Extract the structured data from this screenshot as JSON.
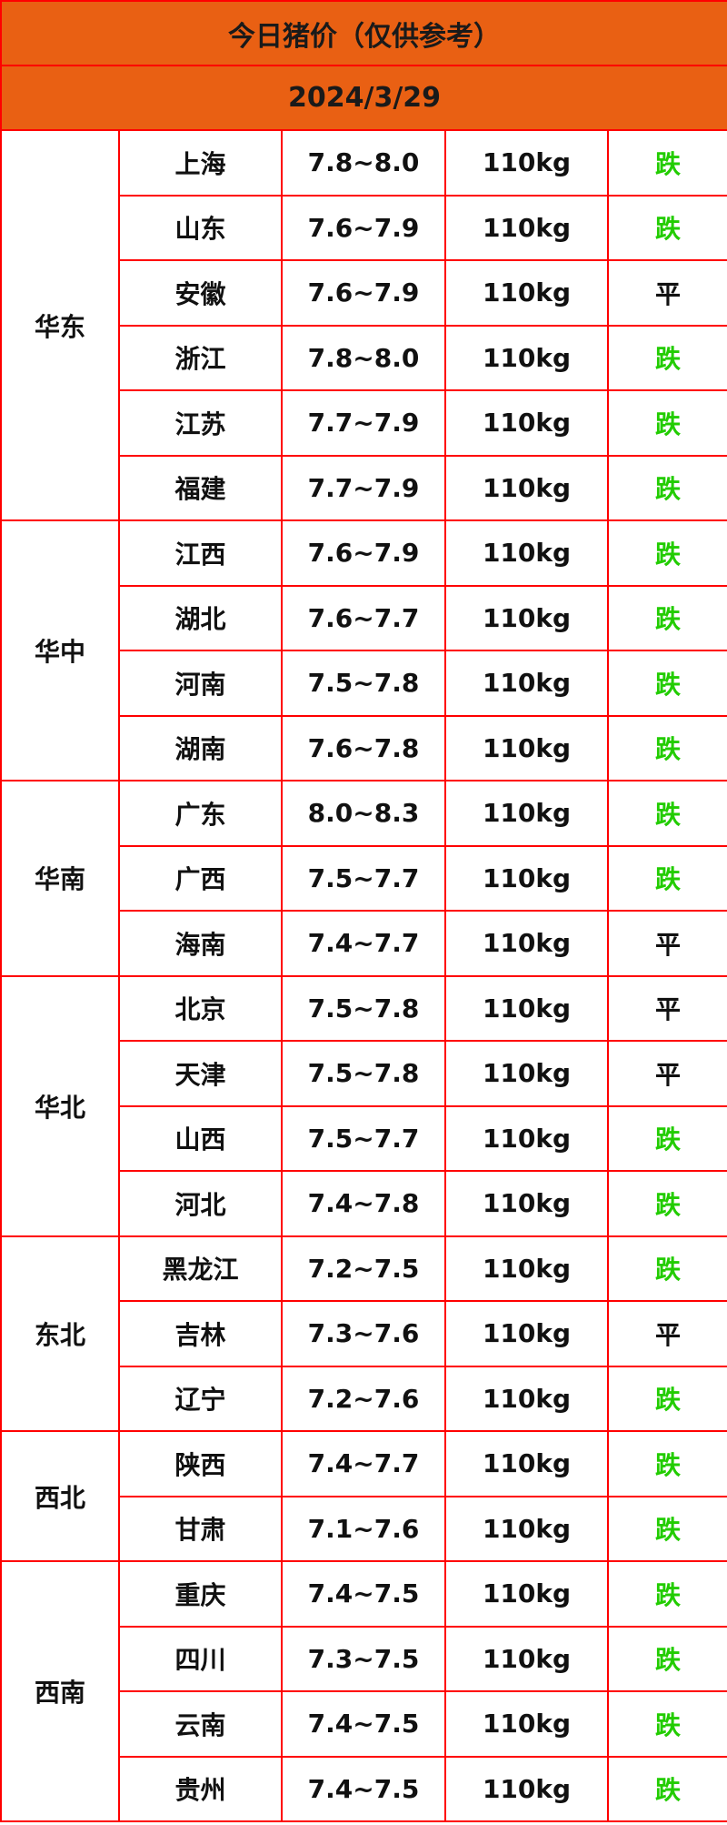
{
  "title": "今日猪价（仅供参考）",
  "date": "2024/3/29",
  "colors": {
    "header_bg": "#e96013",
    "border": "#ff0000",
    "down": "#22cc00",
    "flat": "#111111"
  },
  "regions": [
    {
      "name": "华东",
      "rows": [
        {
          "province": "上海",
          "price": "7.8~8.0",
          "weight": "110kg",
          "trend": "跌"
        },
        {
          "province": "山东",
          "price": "7.6~7.9",
          "weight": "110kg",
          "trend": "跌"
        },
        {
          "province": "安徽",
          "price": "7.6~7.9",
          "weight": "110kg",
          "trend": "平"
        },
        {
          "province": "浙江",
          "price": "7.8~8.0",
          "weight": "110kg",
          "trend": "跌"
        },
        {
          "province": "江苏",
          "price": "7.7~7.9",
          "weight": "110kg",
          "trend": "跌"
        },
        {
          "province": "福建",
          "price": "7.7~7.9",
          "weight": "110kg",
          "trend": "跌"
        }
      ]
    },
    {
      "name": "华中",
      "rows": [
        {
          "province": "江西",
          "price": "7.6~7.9",
          "weight": "110kg",
          "trend": "跌"
        },
        {
          "province": "湖北",
          "price": "7.6~7.7",
          "weight": "110kg",
          "trend": "跌"
        },
        {
          "province": "河南",
          "price": "7.5~7.8",
          "weight": "110kg",
          "trend": "跌"
        },
        {
          "province": "湖南",
          "price": "7.6~7.8",
          "weight": "110kg",
          "trend": "跌"
        }
      ]
    },
    {
      "name": "华南",
      "rows": [
        {
          "province": "广东",
          "price": "8.0~8.3",
          "weight": "110kg",
          "trend": "跌"
        },
        {
          "province": "广西",
          "price": "7.5~7.7",
          "weight": "110kg",
          "trend": "跌"
        },
        {
          "province": "海南",
          "price": "7.4~7.7",
          "weight": "110kg",
          "trend": "平"
        }
      ]
    },
    {
      "name": "华北",
      "rows": [
        {
          "province": "北京",
          "price": "7.5~7.8",
          "weight": "110kg",
          "trend": "平"
        },
        {
          "province": "天津",
          "price": "7.5~7.8",
          "weight": "110kg",
          "trend": "平"
        },
        {
          "province": "山西",
          "price": "7.5~7.7",
          "weight": "110kg",
          "trend": "跌"
        },
        {
          "province": "河北",
          "price": "7.4~7.8",
          "weight": "110kg",
          "trend": "跌"
        }
      ]
    },
    {
      "name": "东北",
      "rows": [
        {
          "province": "黑龙江",
          "price": "7.2~7.5",
          "weight": "110kg",
          "trend": "跌"
        },
        {
          "province": "吉林",
          "price": "7.3~7.6",
          "weight": "110kg",
          "trend": "平"
        },
        {
          "province": "辽宁",
          "price": "7.2~7.6",
          "weight": "110kg",
          "trend": "跌"
        }
      ]
    },
    {
      "name": "西北",
      "rows": [
        {
          "province": "陕西",
          "price": "7.4~7.7",
          "weight": "110kg",
          "trend": "跌"
        },
        {
          "province": "甘肃",
          "price": "7.1~7.6",
          "weight": "110kg",
          "trend": "跌"
        }
      ]
    },
    {
      "name": "西南",
      "rows": [
        {
          "province": "重庆",
          "price": "7.4~7.5",
          "weight": "110kg",
          "trend": "跌"
        },
        {
          "province": "四川",
          "price": "7.3~7.5",
          "weight": "110kg",
          "trend": "跌"
        },
        {
          "province": "云南",
          "price": "7.4~7.5",
          "weight": "110kg",
          "trend": "跌"
        },
        {
          "province": "贵州",
          "price": "7.4~7.5",
          "weight": "110kg",
          "trend": "跌"
        }
      ]
    }
  ]
}
